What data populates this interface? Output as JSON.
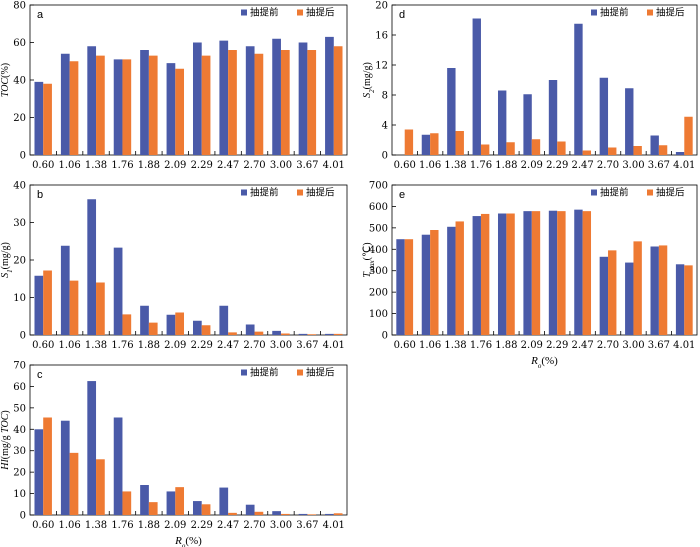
{
  "legend": {
    "before": "抽提前",
    "after": "抽提后",
    "colors": {
      "before": "#4A5AA8",
      "after": "#EE7A33"
    }
  },
  "x_axis_title": "R_o(%)",
  "chart_data": [
    {
      "panel": "a",
      "type": "bar",
      "ylabel": "TOC(%)",
      "ylim": [
        0,
        80
      ],
      "yticks": [
        0,
        20,
        40,
        60,
        80
      ],
      "categories": [
        "0.60",
        "1.06",
        "1.38",
        "1.76",
        "1.88",
        "2.09",
        "2.29",
        "2.47",
        "2.70",
        "3.00",
        "3.67",
        "4.01"
      ],
      "series": [
        {
          "name": "抽提前",
          "values": [
            39,
            54,
            58,
            51,
            56,
            49,
            60,
            61,
            58,
            62,
            60,
            63
          ]
        },
        {
          "name": "抽提后",
          "values": [
            38,
            50,
            53,
            51,
            53,
            46,
            53,
            56,
            54,
            56,
            56,
            58
          ]
        }
      ]
    },
    {
      "panel": "b",
      "type": "bar",
      "ylabel": "S1(mg/g)",
      "ylim": [
        0,
        40
      ],
      "yticks": [
        0,
        10,
        20,
        30,
        40
      ],
      "categories": [
        "0.60",
        "1.06",
        "1.38",
        "1.76",
        "1.88",
        "2.09",
        "2.29",
        "2.47",
        "2.70",
        "3.00",
        "3.67",
        "4.01"
      ],
      "series": [
        {
          "name": "抽提前",
          "values": [
            15.8,
            23.8,
            36.2,
            23.3,
            7.8,
            5.4,
            3.8,
            7.8,
            2.8,
            1.1,
            0.3,
            0.3
          ]
        },
        {
          "name": "抽提后",
          "values": [
            17.2,
            14.5,
            14.0,
            5.5,
            3.3,
            6.0,
            2.6,
            0.7,
            0.9,
            0.4,
            0.2,
            0.3
          ]
        }
      ]
    },
    {
      "panel": "c",
      "type": "bar",
      "ylabel": "HI(mg/g TOC)",
      "ylim": [
        0,
        70
      ],
      "yticks": [
        0,
        10,
        20,
        30,
        40,
        50,
        60,
        70
      ],
      "categories": [
        "0.60",
        "1.06",
        "1.38",
        "1.76",
        "1.88",
        "2.09",
        "2.29",
        "2.47",
        "2.70",
        "3.00",
        "3.67",
        "4.01"
      ],
      "series": [
        {
          "name": "抽提前",
          "values": [
            40,
            44,
            62.5,
            45.5,
            14,
            11,
            6.5,
            12.8,
            4.8,
            1.8,
            0.5,
            0.5
          ]
        },
        {
          "name": "抽提后",
          "values": [
            45.5,
            29,
            26,
            11,
            6,
            13,
            5,
            1,
            1.5,
            0.5,
            0.3,
            0.8
          ]
        }
      ]
    },
    {
      "panel": "d",
      "type": "bar",
      "ylabel": "S2(mg/g)",
      "ylim": [
        0,
        20
      ],
      "yticks": [
        0,
        4,
        8,
        12,
        16,
        20
      ],
      "categories": [
        "0.60",
        "1.06",
        "1.38",
        "1.76",
        "1.88",
        "2.09",
        "2.29",
        "2.47",
        "2.70",
        "3.00",
        "3.67",
        "4.01"
      ],
      "series": [
        {
          "name": "抽提前",
          "values": [
            0,
            2.7,
            11.6,
            18.2,
            8.6,
            8.1,
            10.0,
            17.5,
            10.3,
            8.9,
            2.6,
            0.4
          ]
        },
        {
          "name": "抽提后",
          "values": [
            3.4,
            2.9,
            3.2,
            1.4,
            1.7,
            2.1,
            1.8,
            0.6,
            1.0,
            1.2,
            1.3,
            5.1
          ]
        }
      ]
    },
    {
      "panel": "e",
      "type": "bar",
      "ylabel": "Tmax(℃)",
      "ylim": [
        0,
        700
      ],
      "yticks": [
        0,
        100,
        200,
        300,
        400,
        500,
        600,
        700
      ],
      "categories": [
        "0.60",
        "1.06",
        "1.38",
        "1.76",
        "1.88",
        "2.09",
        "2.29",
        "2.47",
        "2.70",
        "3.00",
        "3.67",
        "4.01"
      ],
      "series": [
        {
          "name": "抽提前",
          "values": [
            447,
            468,
            505,
            555,
            567,
            578,
            580,
            585,
            365,
            338,
            413,
            330
          ]
        },
        {
          "name": "抽提后",
          "values": [
            447,
            490,
            530,
            565,
            567,
            578,
            578,
            578,
            395,
            437,
            418,
            325
          ]
        }
      ]
    }
  ]
}
